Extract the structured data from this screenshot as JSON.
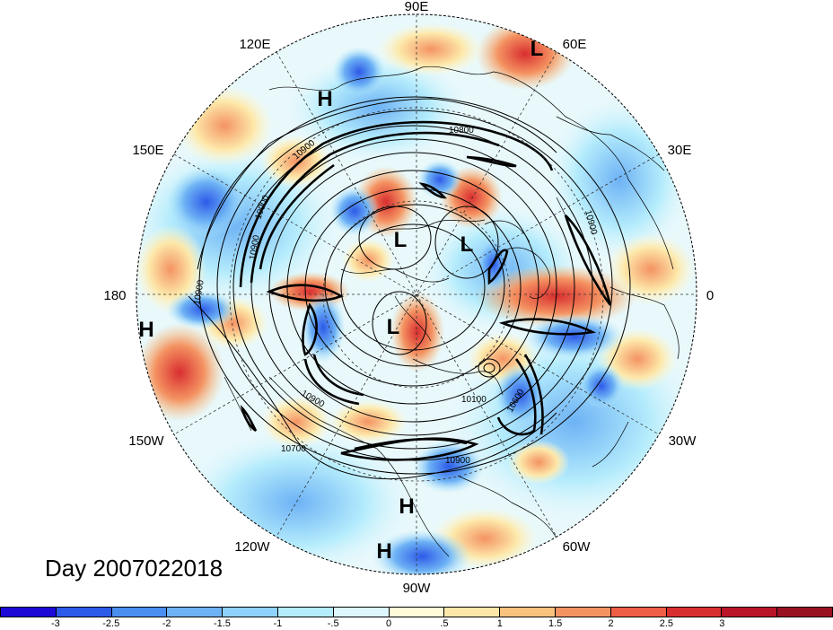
{
  "title": "Day 2007022018",
  "lon_labels": {
    "e90": "90E",
    "e120": "120E",
    "e60": "60E",
    "e150": "150E",
    "e30": "30E",
    "e180": "180",
    "e0": "0",
    "w150": "150W",
    "w30": "30W",
    "w120": "120W",
    "w60": "60W",
    "w90": "90W"
  },
  "pressure_centers": [
    {
      "label": "L",
      "kind": "low"
    },
    {
      "label": "H",
      "kind": "high"
    },
    {
      "label": "L",
      "kind": "low"
    },
    {
      "label": "L",
      "kind": "low"
    },
    {
      "label": "L",
      "kind": "low"
    },
    {
      "label": "H",
      "kind": "high"
    },
    {
      "label": "H",
      "kind": "high"
    },
    {
      "label": "H",
      "kind": "high"
    }
  ],
  "contour_labels": [
    "10900",
    "10900",
    "10800",
    "10900",
    "10900",
    "10900",
    "10900",
    "10700",
    "10900",
    "10100",
    "10600"
  ],
  "colorbar": {
    "colors": [
      "#1d0ad6",
      "#2d5ae8",
      "#4a8ff0",
      "#6db2f5",
      "#8fd2fb",
      "#b5ecfc",
      "#dcf7fd",
      "#fffbd9",
      "#fde8aa",
      "#f9c27d",
      "#f49362",
      "#ee5d45",
      "#d92e2f",
      "#ba1428",
      "#991022"
    ],
    "ticks": [
      "-3",
      "-2.5",
      "-2",
      "-1.5",
      "-1",
      "-.5",
      "0",
      ".5",
      "1",
      "1.5",
      "2",
      "2.5",
      "3"
    ]
  }
}
